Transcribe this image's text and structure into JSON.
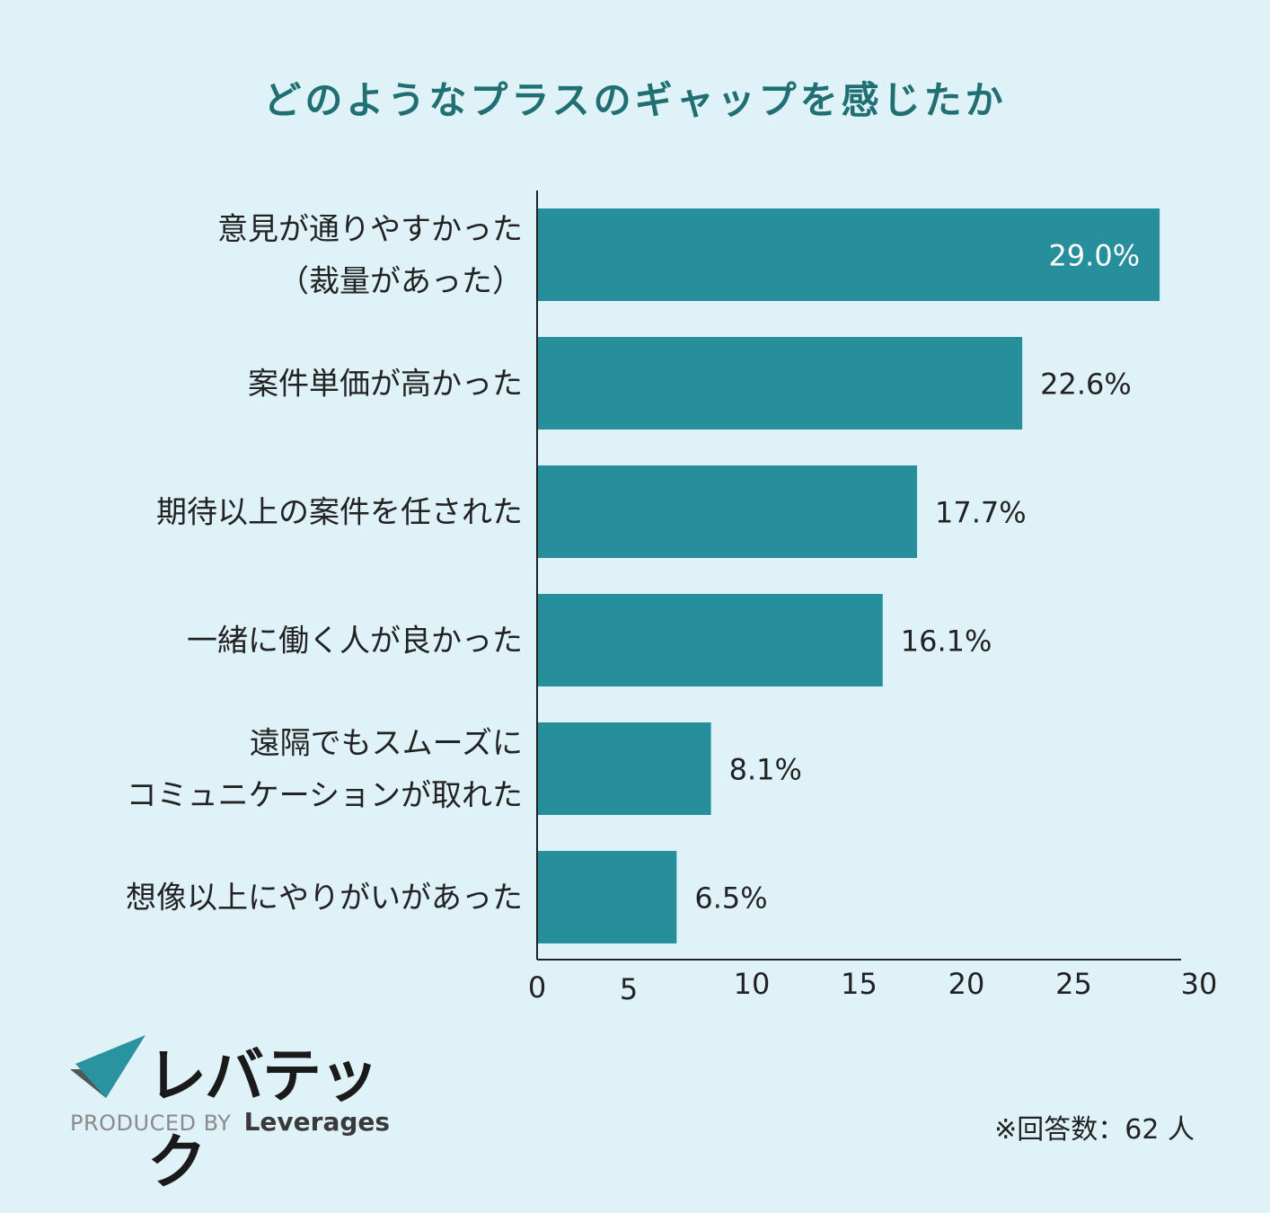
{
  "title": "どのようなプラスのギャップを感じたか",
  "chart_data": {
    "type": "bar",
    "orientation": "horizontal",
    "categories": [
      [
        "意見が通りやすかった",
        "（裁量があった）"
      ],
      [
        "案件単価が高かった"
      ],
      [
        "期待以上の案件を任された"
      ],
      [
        "一緒に働く人が良かった"
      ],
      [
        "遠隔でもスムーズに",
        "コミュニケーションが取れた"
      ],
      [
        "想像以上にやりがいがあった"
      ]
    ],
    "values": [
      29.0,
      22.6,
      17.7,
      16.1,
      8.1,
      6.5
    ],
    "value_labels": [
      "29.0%",
      "22.6%",
      "17.7%",
      "16.1%",
      "8.1%",
      "6.5%"
    ],
    "xlim": [
      0,
      30
    ],
    "ticks": [
      "0",
      "5",
      "10",
      "15",
      "20",
      "25",
      "30"
    ],
    "bar_color": "#278f9c",
    "grid": false
  },
  "brand": {
    "name": "レバテック",
    "produced_by": "PRODUCED BY",
    "org": "Leverages"
  },
  "note": "※回答数：62 人"
}
